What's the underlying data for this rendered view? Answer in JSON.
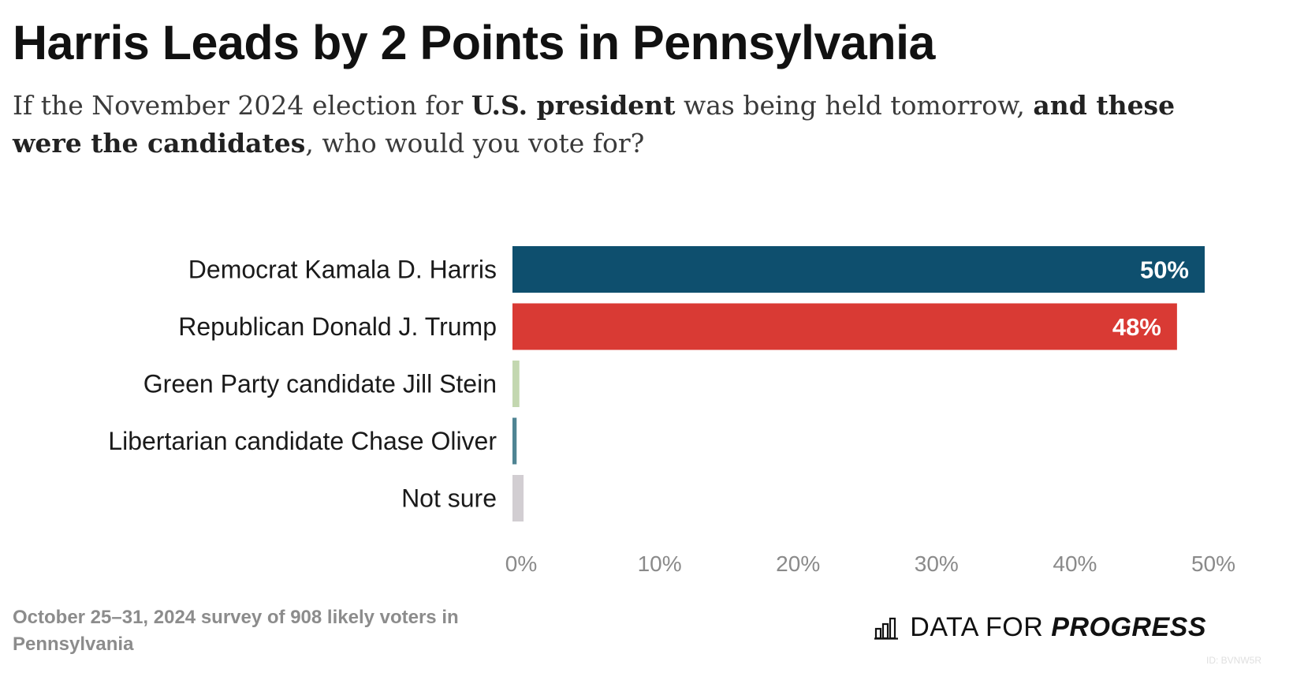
{
  "title": "Harris Leads by 2 Points in Pennsylvania",
  "subtitle": {
    "part1": "If the November 2024 election for ",
    "bold1": "U.S. president",
    "part2": " was being held tomorrow, ",
    "bold2": "and these were the candidates",
    "part3": ", who would you vote for?"
  },
  "chart_data": {
    "type": "bar",
    "orientation": "horizontal",
    "categories": [
      "Democrat Kamala D. Harris",
      "Republican Donald J. Trump",
      "Green Party candidate Jill Stein",
      "Libertarian candidate Chase Oliver",
      "Not sure"
    ],
    "values": [
      50,
      48,
      0.5,
      0.3,
      0.8
    ],
    "value_labels": [
      "50%",
      "48%",
      "",
      "",
      ""
    ],
    "colors": [
      "#0e4f6e",
      "#d93a34",
      "#c3d7b0",
      "#4f8493",
      "#d2ced2"
    ],
    "xlim": [
      0,
      50
    ],
    "x_ticks": [
      0,
      10,
      20,
      30,
      40,
      50
    ],
    "x_tick_labels": [
      "0%",
      "10%",
      "20%",
      "30%",
      "40%",
      "50%"
    ],
    "grid": false
  },
  "footnote": "October 25–31, 2024 survey of 908 likely voters in Pennsylvania",
  "logo": {
    "text_light": "DATA FOR",
    "text_bold": "PROGRESS",
    "icon": "bar-chart-icon"
  },
  "chart_id": "ID: BVNW5R"
}
